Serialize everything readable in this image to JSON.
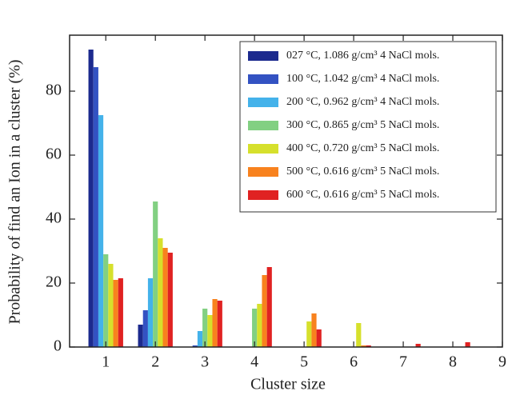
{
  "chart_data": {
    "type": "bar",
    "xlabel": "Cluster size",
    "ylabel": "Probability of find an Ion in a cluster (%)",
    "x": [
      1,
      2,
      3,
      4,
      5,
      6,
      7,
      8
    ],
    "series": [
      {
        "name": "027 °C, 1.086 g/cm³ 4 NaCl mols.",
        "color": "#1c2a8e",
        "values": [
          93,
          7,
          0,
          0,
          0,
          0,
          0,
          0
        ]
      },
      {
        "name": "100 °C, 1.042 g/cm³ 4 NaCl mols.",
        "color": "#3352c2",
        "values": [
          87.5,
          11.5,
          0.5,
          0,
          0,
          0,
          0,
          0
        ]
      },
      {
        "name": "200 °C, 0.962 g/cm³ 4 NaCl mols.",
        "color": "#44b2ea",
        "values": [
          72.5,
          21.5,
          5,
          0,
          0,
          0,
          0,
          0
        ]
      },
      {
        "name": "300 °C, 0.865 g/cm³ 5 NaCl mols.",
        "color": "#82d082",
        "values": [
          29,
          45.5,
          12,
          12,
          0,
          0,
          0,
          0
        ]
      },
      {
        "name": "400 °C, 0.720 g/cm³ 5 NaCl mols.",
        "color": "#d6e02c",
        "values": [
          26,
          34,
          10,
          13.5,
          8,
          7.5,
          0,
          0
        ]
      },
      {
        "name": "500 °C, 0.616 g/cm³ 5 NaCl mols.",
        "color": "#f8821e",
        "values": [
          21,
          31,
          15,
          22.5,
          10.5,
          0.5,
          0,
          0
        ]
      },
      {
        "name": "600 °C, 0.616 g/cm³ 5 NaCl mols.",
        "color": "#e02222",
        "values": [
          21.5,
          29.5,
          14.5,
          25,
          5.5,
          0.5,
          1,
          1.5
        ]
      }
    ],
    "xlim": [
      0.27,
      9
    ],
    "xticks": [
      1,
      2,
      3,
      4,
      5,
      6,
      7,
      8,
      9
    ],
    "ylim": [
      0,
      97.5
    ],
    "yticks": [
      0,
      20,
      40,
      60,
      80
    ],
    "legend": "upper right"
  }
}
